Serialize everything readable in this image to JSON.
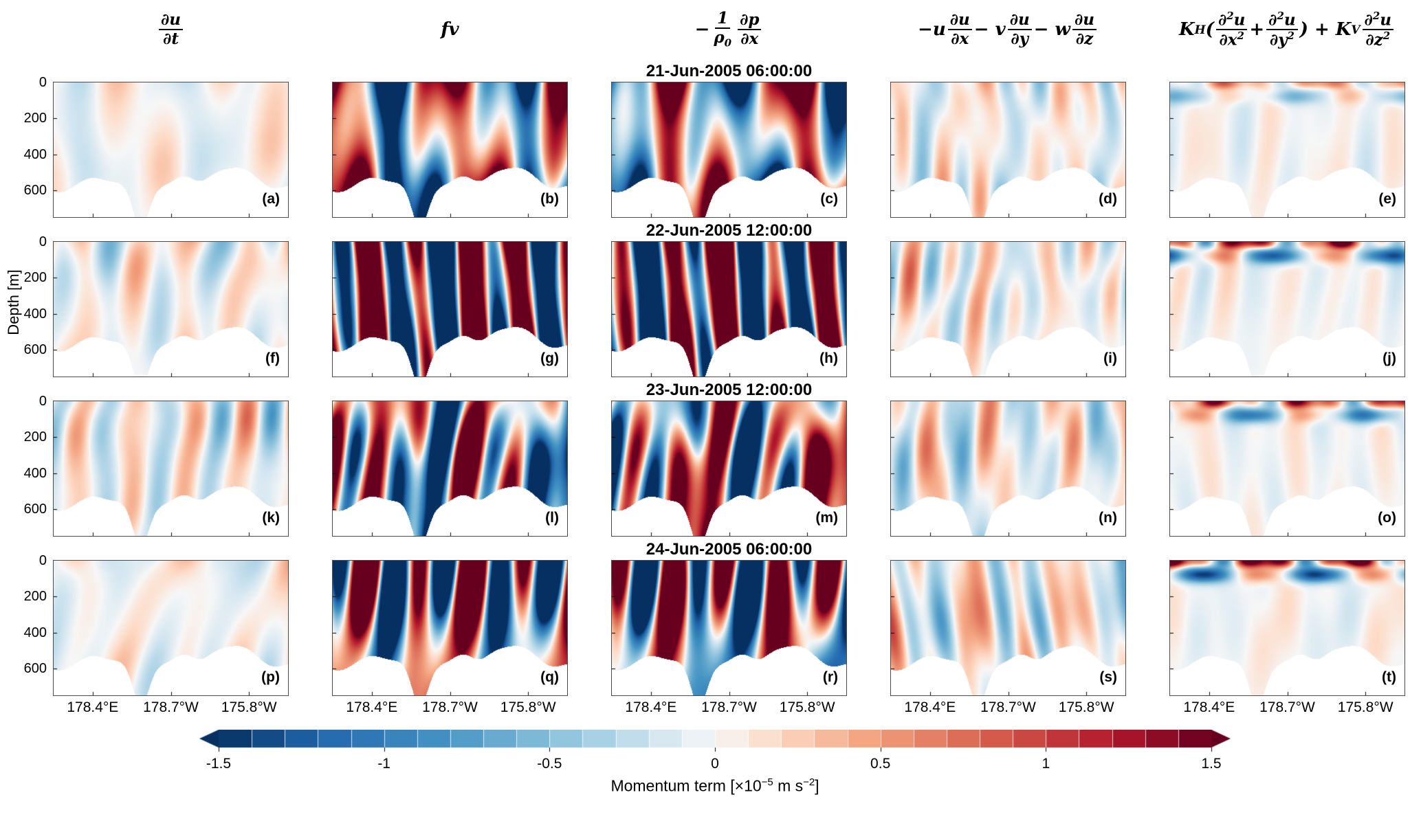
{
  "figure": {
    "y_label": "Depth [m]",
    "y_ticks": [
      "0",
      "200",
      "400",
      "600"
    ],
    "y_tick_values": [
      0,
      200,
      400,
      600
    ],
    "depth_max": 750,
    "x_ticks": [
      "178.4°E",
      "178.7°W",
      "175.8°W"
    ],
    "column_headers": [
      {
        "id": "dudt",
        "text": "∂u/∂t",
        "html": "<span class='mfrac'><span class='num'>∂u</span><span class='den'>∂t</span></span>"
      },
      {
        "id": "fv",
        "text": "fv",
        "html": "fv"
      },
      {
        "id": "pgf",
        "text": "−(1/ρ0) ∂p/∂x",
        "html": "−<span class='mfrac'><span class='num'>1</span><span class='den'>ρ<sub>0</sub></span></span><span class='mfrac'><span class='num'>∂p</span><span class='den'>∂x</span></span>"
      },
      {
        "id": "advection",
        "text": "−u ∂u/∂x − v ∂u/∂y − w ∂u/∂z",
        "html": "−u<span class='mfrac'><span class='num'>∂u</span><span class='den'>∂x</span></span> − v<span class='mfrac'><span class='num'>∂u</span><span class='den'>∂y</span></span> − w<span class='mfrac'><span class='num'>∂u</span><span class='den'>∂z</span></span>"
      },
      {
        "id": "viscosity",
        "text": "KH(∂²u/∂x² + ∂²u/∂y²) + KV ∂²u/∂z²",
        "html": "K<sub>H</sub>(<span class='mfrac'><span class='num'>∂<sup>2</sup>u</span><span class='den'>∂x<sup>2</sup></span></span> + <span class='mfrac'><span class='num'>∂<sup>2</sup>u</span><span class='den'>∂y<sup>2</sup></span></span>) + K<sub>V</sub><span class='mfrac'><span class='num'>∂<sup>2</sup>u</span><span class='den'>∂z<sup>2</sup></span></span>"
      }
    ],
    "rows": [
      {
        "title": "21-Jun-2005 06:00:00",
        "panels": [
          "(a)",
          "(b)",
          "(c)",
          "(d)",
          "(e)"
        ]
      },
      {
        "title": "22-Jun-2005 12:00:00",
        "panels": [
          "(f)",
          "(g)",
          "(h)",
          "(i)",
          "(j)"
        ]
      },
      {
        "title": "23-Jun-2005 12:00:00",
        "panels": [
          "(k)",
          "(l)",
          "(m)",
          "(n)",
          "(o)"
        ]
      },
      {
        "title": "24-Jun-2005 06:00:00",
        "panels": [
          "(p)",
          "(q)",
          "(r)",
          "(s)",
          "(t)"
        ]
      }
    ],
    "colorbar": {
      "label_text": "Momentum term [×10⁻⁵ m s⁻²]",
      "label_html": "Momentum term [×10<sup>−5</sup> m s<sup>−2</sup>]",
      "ticks": [
        "-1.5",
        "-1",
        "-0.5",
        "0",
        "0.5",
        "1",
        "1.5"
      ],
      "tick_values": [
        -1.5,
        -1,
        -0.5,
        0,
        0.5,
        1,
        1.5
      ],
      "range": [
        -1.5,
        1.5
      ],
      "colormap_endpoints": {
        "negative": "#053061",
        "zero": "#f7f7f7",
        "positive": "#67001f"
      }
    },
    "render": {
      "surface_row_factor": [
        0.45,
        1.0,
        0.85,
        1.15
      ],
      "columns": [
        {
          "mode": "interior",
          "amp": 0.34,
          "freq": 3.2,
          "tilt": 1.2,
          "decay": 0.7
        },
        {
          "mode": "interior",
          "amp": 2.4,
          "freq": 3.0,
          "tilt": 0.6,
          "decay": 0.2
        },
        {
          "mode": "anti_fv",
          "scale": 0.95,
          "pert_amp": 0.55,
          "freq": 2.6,
          "tilt": 0.7,
          "decay": 0.35
        },
        {
          "mode": "interior",
          "amp": 0.46,
          "freq": 4.8,
          "tilt": 0.9,
          "decay": 0.55
        },
        {
          "mode": "surface",
          "amp": 1.25,
          "interior_amp": 0.15,
          "freq": 2.6
        }
      ]
    }
  },
  "chart_data": {
    "type": "heatmap",
    "layout": "4 rows (times) × 5 columns (zonal momentum budget terms); each panel is a depth–longitude ocean section with seafloor masked white",
    "column_terms": [
      "∂u/∂t",
      "fv",
      "−(1/ρ₀) ∂p/∂x",
      "−u ∂u/∂x − v ∂u/∂y − w ∂u/∂z",
      "K_H(∂²u/∂x² + ∂²u/∂y²) + K_V ∂²u/∂z²"
    ],
    "row_times": [
      "21-Jun-2005 06:00:00",
      "22-Jun-2005 12:00:00",
      "23-Jun-2005 12:00:00",
      "24-Jun-2005 06:00:00"
    ],
    "panel_labels": [
      [
        "(a)",
        "(b)",
        "(c)",
        "(d)",
        "(e)"
      ],
      [
        "(f)",
        "(g)",
        "(h)",
        "(i)",
        "(j)"
      ],
      [
        "(k)",
        "(l)",
        "(m)",
        "(n)",
        "(o)"
      ],
      [
        "(p)",
        "(q)",
        "(r)",
        "(s)",
        "(t)"
      ]
    ],
    "x_tick_labels": [
      "178.4°E",
      "178.7°W",
      "175.8°W"
    ],
    "y_axis": {
      "label": "Depth [m]",
      "ticks": [
        0,
        200,
        400,
        600
      ],
      "range": [
        0,
        750
      ],
      "units": "m"
    },
    "color_axis": {
      "label": "Momentum term [×10⁻⁵ m s⁻²]",
      "ticks": [
        -1.5,
        -1,
        -0.5,
        0,
        0.5,
        1,
        1.5
      ],
      "range": [
        -1.5,
        1.5
      ],
      "colormap": "RdBu (blue = negative, white = zero, red = positive)",
      "extend": "both (arrow caps at both ends)"
    },
    "qualitative_magnitudes": {
      "du_dt": "weak (|term| mostly < 0.3×10⁻⁵), pale red/blue streaks",
      "fv": "strong, saturated alternating ±1.5×10⁻⁵ slanted vertical bands over full depth",
      "pressure_gradient": "strong, saturated alternating bands roughly opposite in sign to fv (near-geostrophic balance)",
      "advection": "weak, pale narrow vertical streaks",
      "viscosity": "weak and surface-intensified: thin red band at surface over blue layer, pale interior"
    },
    "bathymetry": "same jagged seafloor in every panel, ~450–650 m deep with a narrow V-shaped trench near mid-section reaching the panel bottom",
    "grid": false,
    "legend": "horizontal colorbar at bottom center"
  }
}
